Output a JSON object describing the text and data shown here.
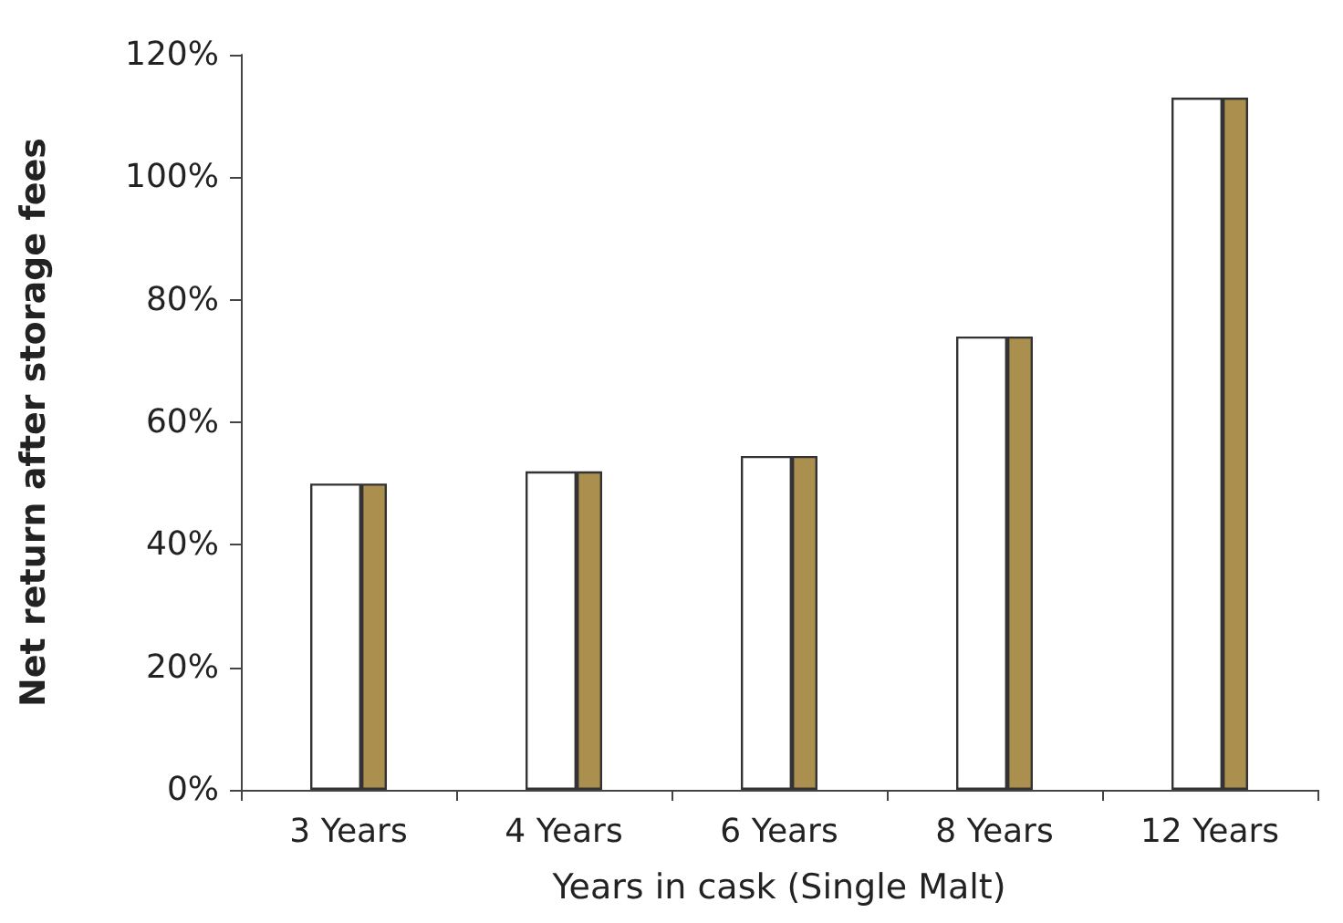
{
  "chart_data": {
    "type": "bar",
    "xlabel": "Years in cask (Single Malt)",
    "ylabel": "Net return after storage fees",
    "categories": [
      "3 Years",
      "4 Years",
      "6 Years",
      "8 Years",
      "12 Years"
    ],
    "series": [
      {
        "color": "#ffffff",
        "values": [
          50,
          52,
          54.5,
          74,
          113
        ]
      },
      {
        "color": "#ab8f4f",
        "values": [
          50,
          52,
          54.5,
          74,
          113
        ]
      }
    ],
    "ylim": [
      0,
      120
    ],
    "yticks": [
      {
        "value": 0,
        "label": "0%"
      },
      {
        "value": 20,
        "label": "20%"
      },
      {
        "value": 40,
        "label": "40%"
      },
      {
        "value": 60,
        "label": "60%"
      },
      {
        "value": 80,
        "label": "80%"
      },
      {
        "value": 100,
        "label": "100%"
      },
      {
        "value": 120,
        "label": "120%"
      }
    ],
    "grid": false
  }
}
